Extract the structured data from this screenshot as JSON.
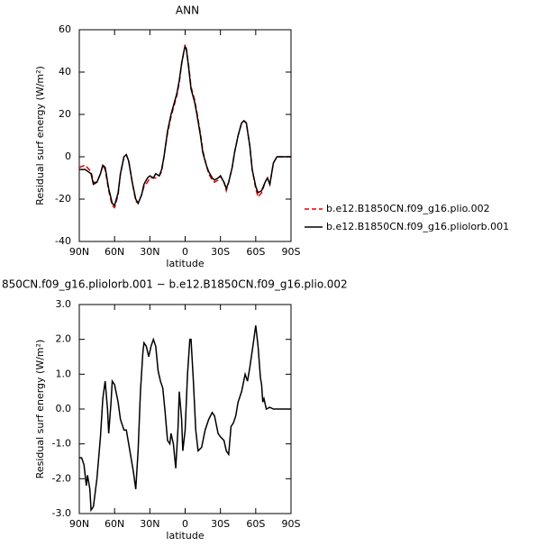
{
  "chart_data": [
    {
      "type": "line",
      "title": "ANN",
      "x_label": "latitude",
      "y_label": "Residual surf energy (W/m²)",
      "x": [
        90,
        85,
        80,
        78,
        75,
        72,
        70,
        68,
        65,
        62,
        60,
        57,
        55,
        52,
        50,
        48,
        45,
        42,
        40,
        37,
        35,
        32,
        30,
        27,
        25,
        22,
        20,
        18,
        15,
        12,
        10,
        7,
        5,
        3,
        1,
        0,
        -1,
        -3,
        -5,
        -8,
        -10,
        -13,
        -15,
        -18,
        -20,
        -23,
        -25,
        -28,
        -30,
        -33,
        -35,
        -37,
        -40,
        -42,
        -45,
        -48,
        -50,
        -52,
        -55,
        -57,
        -60,
        -62,
        -65,
        -68,
        -70,
        -72,
        -75,
        -78,
        -80,
        -85,
        -90
      ],
      "series": [
        {
          "name": "b.e12.B1850CN.f09_g16.plio.002",
          "color": "#e00000",
          "linestyle": "dashed",
          "values": [
            -5,
            -4,
            -7,
            -12,
            -12,
            -8,
            -4,
            -6,
            -16,
            -23,
            -24,
            -18,
            -8,
            0,
            1,
            -2,
            -12,
            -21,
            -22,
            -18,
            -14,
            -12,
            -10,
            -10,
            -10,
            -9,
            -7,
            0,
            11,
            19,
            23,
            29,
            35,
            44,
            50,
            53,
            51,
            43,
            33,
            27,
            21,
            11,
            3,
            -4,
            -8,
            -11,
            -12,
            -11,
            -9,
            -12,
            -16,
            -12,
            -5,
            2,
            10,
            16,
            17,
            16,
            5,
            -6,
            -15,
            -19,
            -17,
            -12,
            -10,
            -13,
            -3,
            0,
            0,
            0,
            0
          ]
        },
        {
          "name": "b.e12.B1850CN.f09_g16.pliolorb.001",
          "color": "#000000",
          "linestyle": "solid",
          "values": [
            -6,
            -6,
            -8,
            -13,
            -12,
            -8,
            -4,
            -5,
            -15,
            -22,
            -23,
            -17,
            -8,
            0,
            1,
            -2,
            -12,
            -20,
            -22,
            -18,
            -13,
            -10,
            -9,
            -10,
            -8,
            -9,
            -6,
            0,
            12,
            20,
            24,
            30,
            36,
            44,
            50,
            52,
            51,
            42,
            32,
            26,
            20,
            10,
            2,
            -4,
            -7,
            -10,
            -11,
            -10,
            -9,
            -12,
            -15,
            -12,
            -5,
            2,
            10,
            16,
            17,
            16,
            5,
            -6,
            -14,
            -17,
            -16,
            -12,
            -10,
            -13,
            -3,
            0,
            0,
            0,
            0
          ]
        }
      ],
      "xlim": [
        90,
        -90
      ],
      "xticks": [
        {
          "value": 90,
          "label": "90N"
        },
        {
          "value": 60,
          "label": "60N"
        },
        {
          "value": 30,
          "label": "30N"
        },
        0,
        {
          "value": -30,
          "label": "30S"
        },
        {
          "value": -60,
          "label": "60S"
        },
        {
          "value": -90,
          "label": "90S"
        }
      ],
      "ylim": [
        -40,
        60
      ],
      "yticks": [
        -40,
        -20,
        0,
        20,
        40,
        60
      ],
      "legend": "right"
    },
    {
      "type": "line",
      "title": "850CN.f09_g16.pliolorb.001 − b.e12.B1850CN.f09_g16.plio.002",
      "x_label": "latitude",
      "y_label": "Residual surf energy (W/m²)",
      "x": [
        90,
        88,
        86,
        84,
        83,
        81,
        80,
        78,
        75,
        72,
        70,
        68,
        66,
        65,
        63,
        62,
        60,
        57,
        55,
        52,
        50,
        48,
        46,
        44,
        42,
        40,
        38,
        36,
        35,
        33,
        31,
        29,
        27,
        25,
        23,
        21,
        19,
        17,
        15,
        13,
        12,
        10,
        8,
        6,
        5,
        3,
        2,
        0,
        -2,
        -4,
        -5,
        -7,
        -9,
        -11,
        -14,
        -17,
        -20,
        -23,
        -25,
        -28,
        -30,
        -33,
        -35,
        -37,
        -39,
        -41,
        -43,
        -45,
        -48,
        -51,
        -53,
        -55,
        -58,
        -60,
        -62,
        -64,
        -65,
        -66,
        -67,
        -69,
        -72,
        -75,
        -80,
        -90
      ],
      "series": [
        {
          "color": "#000000",
          "linestyle": "solid",
          "values": [
            -1.4,
            -1.4,
            -1.6,
            -2.2,
            -1.9,
            -2.3,
            -2.9,
            -2.8,
            -2.0,
            -0.8,
            0.3,
            0.8,
            0,
            -0.7,
            0.2,
            0.8,
            0.7,
            0.2,
            -0.3,
            -0.6,
            -0.6,
            -1.0,
            -1.4,
            -1.8,
            -2.3,
            -1.2,
            0.5,
            1.6,
            1.9,
            1.8,
            1.5,
            1.8,
            2.0,
            1.8,
            1.1,
            0.8,
            0.6,
            -0.1,
            -0.9,
            -1.0,
            -0.7,
            -1.0,
            -1.7,
            -0.5,
            0.5,
            -0.3,
            -1.2,
            -0.6,
            1.0,
            2.0,
            2.0,
            0.8,
            -0.6,
            -1.2,
            -1.1,
            -0.6,
            -0.3,
            -0.1,
            -0.2,
            -0.7,
            -0.8,
            -0.9,
            -1.2,
            -1.3,
            -0.5,
            -0.4,
            -0.2,
            0.2,
            0.5,
            1.0,
            0.8,
            1.2,
            1.9,
            2.4,
            1.8,
            0.9,
            0.7,
            0.2,
            0.3,
            0,
            0.05,
            0,
            0,
            0
          ]
        }
      ],
      "xlim": [
        90,
        -90
      ],
      "xticks": [
        {
          "value": 90,
          "label": "90N"
        },
        {
          "value": 60,
          "label": "60N"
        },
        {
          "value": 30,
          "label": "30N"
        },
        0,
        {
          "value": -30,
          "label": "30S"
        },
        {
          "value": -60,
          "label": "60S"
        },
        {
          "value": -90,
          "label": "90S"
        }
      ],
      "ylim": [
        -3,
        3
      ],
      "yticks": [
        {
          "value": -3,
          "label": "-3.0"
        },
        {
          "value": -2,
          "label": "-2.0"
        },
        {
          "value": -1,
          "label": "-1.0"
        },
        {
          "value": 0,
          "label": "0.0"
        },
        {
          "value": 1,
          "label": "1.0"
        },
        {
          "value": 2,
          "label": "2.0"
        },
        {
          "value": 3,
          "label": "3.0"
        }
      ]
    }
  ]
}
